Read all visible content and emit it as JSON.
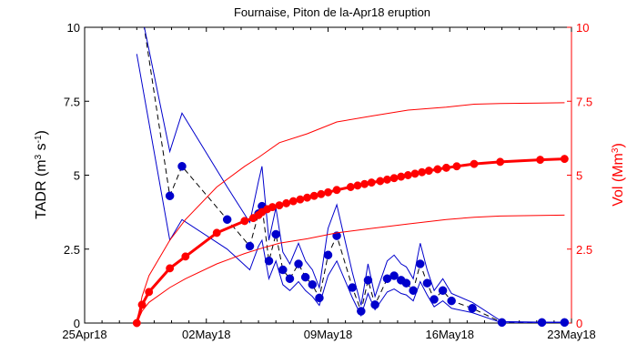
{
  "chart_data": {
    "type": "line",
    "title": "Fournaise, Piton de la-Apr18 eruption",
    "ylabel_left": {
      "base": "TADR (m",
      "sup1": "3",
      "mid": " s",
      "sup2": "-1",
      "end": ")"
    },
    "ylabel_right": {
      "base": "Vol (Mm",
      "sup": "3",
      "end": ")"
    },
    "xlim": [
      0,
      28
    ],
    "x_ticks": [
      {
        "day": 0,
        "label": "25Apr18"
      },
      {
        "day": 7,
        "label": "02May18"
      },
      {
        "day": 14,
        "label": "09May18"
      },
      {
        "day": 21,
        "label": "16May18"
      },
      {
        "day": 28,
        "label": "23May18"
      }
    ],
    "left_axis": {
      "ylim": [
        0,
        10
      ],
      "ticks": [
        "0",
        "2.5",
        "5",
        "7.5",
        "10"
      ],
      "color": "#000000"
    },
    "right_axis": {
      "ylim": [
        0,
        10
      ],
      "ticks": [
        "0",
        "2.5",
        "5",
        "7.5",
        "10"
      ],
      "color": "#ff0000"
    },
    "grid": false,
    "series": [
      {
        "axis": "left",
        "style": "dashed-line-markers",
        "color": "#0000cc",
        "x": [
          3.4,
          4.9,
          5.6,
          8.2,
          9.5,
          10.0,
          10.2,
          10.6,
          11.0,
          11.4,
          11.8,
          12.3,
          12.7,
          13.1,
          13.5,
          14.0,
          14.5,
          15.4,
          15.9,
          16.3,
          16.7,
          17.4,
          17.8,
          18.2,
          18.5,
          18.9,
          19.3,
          19.7,
          20.1,
          20.6,
          21.1,
          22.3,
          24.0,
          26.3,
          27.6
        ],
        "y": [
          10.1,
          4.3,
          5.3,
          3.5,
          2.6,
          3.7,
          3.95,
          2.1,
          3.0,
          1.8,
          1.5,
          2.0,
          1.55,
          1.3,
          0.85,
          2.3,
          2.95,
          1.2,
          0.4,
          1.45,
          0.62,
          1.5,
          1.6,
          1.45,
          1.35,
          1.1,
          2.0,
          1.35,
          0.8,
          1.1,
          0.75,
          0.5,
          0.02,
          0.02,
          0.02
        ]
      },
      {
        "axis": "left",
        "style": "line",
        "color": "#0000cc",
        "x": [
          3.4,
          4.9,
          5.6,
          8.2,
          9.5,
          10.0,
          10.2,
          10.6,
          11.0,
          11.4,
          11.8,
          12.3,
          12.7,
          13.1,
          13.5,
          14.0,
          14.5,
          15.4,
          15.9,
          16.3,
          16.7,
          17.4,
          17.8,
          18.2,
          18.5,
          18.9,
          19.3,
          19.7,
          20.1,
          20.6,
          21.1,
          22.3,
          24.0,
          26.3,
          27.6
        ],
        "y": [
          10.1,
          5.8,
          7.1,
          4.6,
          3.4,
          4.8,
          5.3,
          2.8,
          3.9,
          2.4,
          2.0,
          2.7,
          2.1,
          1.8,
          1.2,
          3.2,
          4.0,
          1.7,
          0.6,
          2.0,
          0.9,
          2.1,
          2.3,
          2.0,
          1.9,
          1.5,
          2.7,
          1.8,
          1.1,
          1.5,
          1.0,
          0.7,
          0.05,
          0.03,
          0.03
        ]
      },
      {
        "axis": "left",
        "style": "line",
        "color": "#0000cc",
        "x": [
          3.0,
          4.9,
          5.6,
          8.2,
          9.5,
          10.0,
          10.2,
          10.6,
          11.0,
          11.4,
          11.8,
          12.3,
          12.7,
          13.1,
          13.5,
          14.0,
          14.5,
          15.4,
          15.9,
          16.3,
          16.7,
          17.4,
          17.8,
          18.2,
          18.5,
          18.9,
          19.3,
          19.7,
          20.1,
          20.6,
          21.1,
          22.3,
          24.0,
          26.3,
          27.6
        ],
        "y": [
          9.1,
          2.8,
          3.5,
          2.5,
          1.8,
          2.6,
          2.8,
          1.5,
          2.1,
          1.3,
          1.1,
          1.4,
          1.1,
          0.9,
          0.6,
          1.6,
          2.1,
          0.85,
          0.25,
          1.0,
          0.45,
          1.05,
          1.15,
          1.0,
          0.95,
          0.75,
          1.4,
          0.95,
          0.55,
          0.75,
          0.5,
          0.35,
          0.01,
          0.01,
          0.01
        ]
      },
      {
        "axis": "right",
        "style": "thick-line-markers",
        "color": "#ff0000",
        "name": "",
        "x": [
          3.0,
          3.3,
          3.7,
          4.9,
          5.8,
          7.6,
          9.2,
          9.7,
          10.0,
          10.2,
          10.5,
          10.8,
          11.2,
          11.6,
          12.0,
          12.4,
          12.8,
          13.2,
          13.6,
          14.0,
          14.5,
          15.3,
          15.7,
          16.1,
          16.5,
          17.0,
          17.4,
          17.8,
          18.2,
          18.6,
          19.0,
          19.4,
          19.8,
          20.3,
          20.8,
          21.4,
          22.4,
          23.9,
          26.2,
          27.6
        ],
        "y": [
          0.0,
          0.62,
          1.05,
          1.85,
          2.25,
          3.05,
          3.45,
          3.55,
          3.65,
          3.75,
          3.85,
          3.92,
          3.98,
          4.05,
          4.12,
          4.18,
          4.24,
          4.3,
          4.36,
          4.42,
          4.5,
          4.6,
          4.65,
          4.7,
          4.75,
          4.8,
          4.85,
          4.9,
          4.95,
          5.0,
          5.05,
          5.1,
          5.15,
          5.2,
          5.25,
          5.3,
          5.38,
          5.45,
          5.52,
          5.55
        ]
      },
      {
        "axis": "right",
        "style": "line",
        "color": "#ff0000",
        "x": [
          3.0,
          3.3,
          3.7,
          4.9,
          5.8,
          7.6,
          9.2,
          10.0,
          11.2,
          12.8,
          14.5,
          16.5,
          18.6,
          20.8,
          22.4,
          23.9,
          26.2,
          27.6
        ],
        "y": [
          0.0,
          0.9,
          1.6,
          2.8,
          3.5,
          4.6,
          5.3,
          5.6,
          6.1,
          6.4,
          6.8,
          7.0,
          7.2,
          7.3,
          7.4,
          7.42,
          7.44,
          7.45
        ]
      },
      {
        "axis": "right",
        "style": "line",
        "color": "#ff0000",
        "x": [
          3.0,
          3.3,
          3.7,
          4.9,
          5.8,
          7.6,
          9.2,
          10.0,
          11.2,
          12.8,
          14.5,
          16.5,
          18.6,
          20.8,
          22.4,
          23.9,
          26.2,
          27.6
        ],
        "y": [
          0.0,
          0.4,
          0.7,
          1.2,
          1.5,
          2.0,
          2.35,
          2.5,
          2.7,
          2.85,
          3.05,
          3.2,
          3.35,
          3.5,
          3.58,
          3.62,
          3.64,
          3.65
        ]
      }
    ]
  }
}
